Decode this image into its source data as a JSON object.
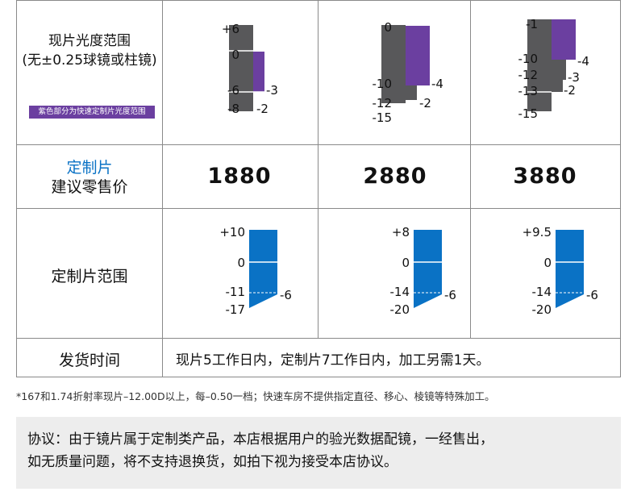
{
  "table": {
    "row1": {
      "title_line1": "现片光度范围",
      "title_line2": "(无±0.25球镜或柱镜)",
      "badge": "紫色部分为快速定制片光度范围",
      "charts": [
        {
          "labels_left": [
            "+6",
            "0",
            "-6",
            "-8"
          ],
          "labels_right": [
            "-3",
            "-2"
          ]
        },
        {
          "labels_left": [
            "0",
            "-10",
            "-12",
            "-15"
          ],
          "labels_right": [
            "-4",
            "-2"
          ]
        },
        {
          "labels_left": [
            "-1",
            "-10",
            "-12",
            "-13",
            "-15"
          ],
          "labels_right": [
            "-4",
            "-3",
            "-2"
          ]
        }
      ]
    },
    "row2": {
      "title_line1": "定制片",
      "title_line2": "建议零售价",
      "prices": [
        "1880",
        "2880",
        "3880"
      ]
    },
    "row3": {
      "title": "定制片范围",
      "charts": [
        {
          "labels_left": [
            "+10",
            "0",
            "-11",
            "-17"
          ],
          "labels_right": [
            "-6"
          ]
        },
        {
          "labels_left": [
            "+8",
            "0",
            "-14",
            "-20"
          ],
          "labels_right": [
            "-6"
          ]
        },
        {
          "labels_left": [
            "+9.5",
            "0",
            "-14",
            "-20"
          ],
          "labels_right": [
            "-6"
          ]
        }
      ]
    },
    "row4": {
      "title": "发货时间",
      "value": "现片5工作日内，定制片7工作日内，加工另需1天。"
    }
  },
  "footnote": "*167和1.74折射率现片–12.00D以上，每–0.50一档；快速车房不提供指定直径、移心、棱镜等特殊加工。",
  "agreement": {
    "line1": "协议：由于镜片属于定制类产品，本店根据用户的验光数据配镜，一经售出，",
    "line2": "如无质量问题，将不支持退换货，如拍下视为接受本店协议。"
  },
  "colors": {
    "gray": "#58585a",
    "purple": "#6b3fa0",
    "blue": "#0a72c5",
    "border": "#8a8a8a"
  }
}
